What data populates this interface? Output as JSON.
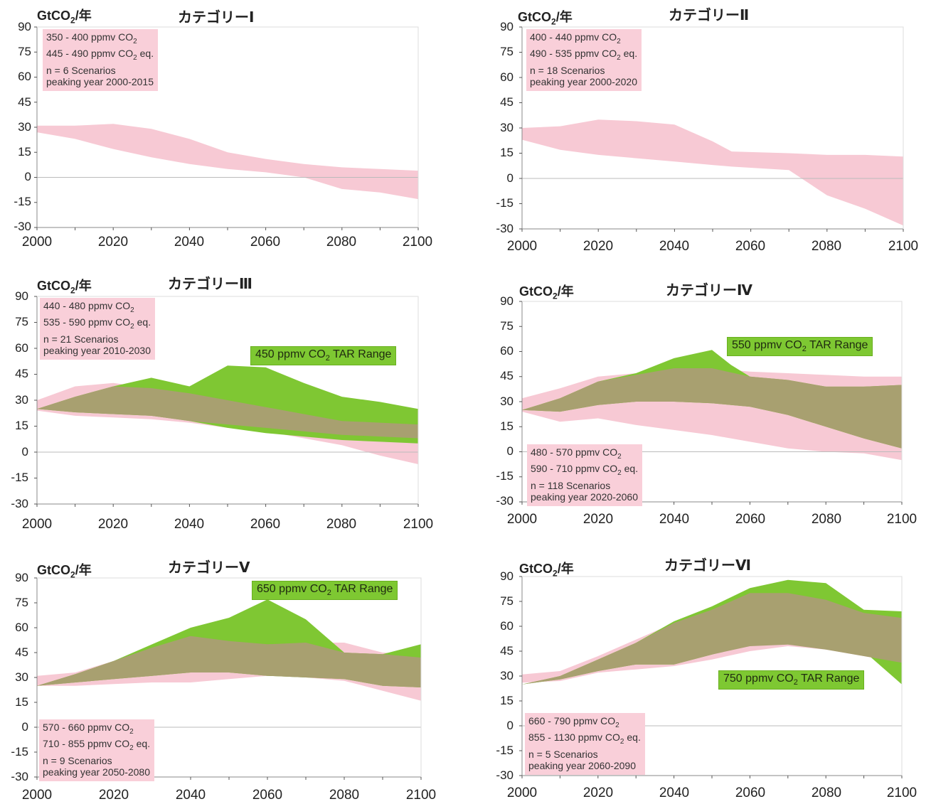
{
  "colors": {
    "scenario_band": "#f7c9d4",
    "tar_band": "#7fc733",
    "overlap_band": "#a8a070",
    "zero_line": "#bbbbbb",
    "frame": "#888888"
  },
  "chart_data": [
    {
      "type": "area",
      "title": "カテゴリーⅠ",
      "ylabel": "GtCO₂/年",
      "x_ticks": [
        "2000",
        "2020",
        "2040",
        "2060",
        "2080",
        "2100"
      ],
      "y_ticks": [
        "90",
        "75",
        "60",
        "45",
        "30",
        "15",
        "0",
        "-15",
        "-30"
      ],
      "xlim": [
        2000,
        2100
      ],
      "ylim": [
        -30,
        90
      ],
      "info": {
        "line1": "350 - 400 ppmv CO",
        "line2": "445 - 490 ppmv CO",
        "line2_suffix": " eq.",
        "line3": "n = 6 Scenarios",
        "line4": "peaking year 2000-2015",
        "sub": "2"
      },
      "info_position": "top-left",
      "series": [
        {
          "x": [
            2000,
            2010,
            2020,
            2030,
            2040,
            2050,
            2060,
            2070,
            2080,
            2090,
            2100
          ],
          "upper": [
            31,
            31,
            32,
            29,
            23,
            15,
            11,
            8,
            6,
            5,
            4
          ],
          "lower": [
            27,
            23,
            17,
            12,
            8,
            5,
            3,
            0,
            -7,
            -9,
            -13
          ]
        }
      ]
    },
    {
      "type": "area",
      "title": "カテゴリーⅡ",
      "ylabel": "GtCO₂/年",
      "x_ticks": [
        "2000",
        "2020",
        "2040",
        "2060",
        "2080",
        "2100"
      ],
      "y_ticks": [
        "90",
        "75",
        "60",
        "45",
        "30",
        "15",
        "0",
        "-15",
        "-30"
      ],
      "xlim": [
        2000,
        2100
      ],
      "ylim": [
        -30,
        90
      ],
      "info": {
        "line1": "400 - 440 ppmv CO",
        "line2": "490 - 535 ppmv CO",
        "line2_suffix": " eq.",
        "line3": "n = 18 Scenarios",
        "line4": "peaking year 2000-2020",
        "sub": "2"
      },
      "info_position": "top-left",
      "series": [
        {
          "x": [
            2000,
            2010,
            2020,
            2030,
            2040,
            2050,
            2055,
            2070,
            2080,
            2090,
            2100
          ],
          "upper": [
            30,
            31,
            35,
            34,
            32,
            22,
            16,
            15,
            14,
            14,
            13
          ],
          "lower": [
            23,
            17,
            14,
            12,
            10,
            8,
            7,
            5,
            -10,
            -18,
            -28
          ]
        }
      ]
    },
    {
      "type": "area",
      "title": "カテゴリーⅢ",
      "ylabel": "GtCO₂/年",
      "x_ticks": [
        "2000",
        "2020",
        "2040",
        "2060",
        "2080",
        "2100"
      ],
      "y_ticks": [
        "90",
        "75",
        "60",
        "45",
        "30",
        "15",
        "0",
        "-15",
        "-30"
      ],
      "xlim": [
        2000,
        2100
      ],
      "ylim": [
        -30,
        90
      ],
      "info": {
        "line1": "440 - 480 ppmv CO",
        "line2": "535 - 590 ppmv CO",
        "line2_suffix": " eq.",
        "line3": "n = 21 Scenarios",
        "line4": "peaking year 2010-2030",
        "sub": "2"
      },
      "info_position": "top-left",
      "tar_label": {
        "prefix": "450 ppmv CO",
        "sub": "2",
        "suffix": " TAR Range"
      },
      "tar_position": "upper-right",
      "series": [
        {
          "x": [
            2000,
            2010,
            2020,
            2030,
            2040,
            2050,
            2060,
            2070,
            2080,
            2090,
            2100
          ],
          "upper": [
            30,
            38,
            40,
            37,
            34,
            30,
            26,
            22,
            18,
            17,
            17
          ],
          "lower": [
            24,
            21,
            20,
            19,
            17,
            14,
            12,
            8,
            4,
            -2,
            -7
          ]
        },
        {
          "x": [
            2000,
            2010,
            2020,
            2030,
            2040,
            2050,
            2060,
            2070,
            2080,
            2090,
            2100
          ],
          "upper": [
            25,
            32,
            38,
            43,
            38,
            50,
            49,
            40,
            32,
            29,
            25
          ],
          "lower": [
            25,
            23,
            22,
            21,
            18,
            14,
            11,
            9,
            7,
            6,
            5
          ]
        },
        {
          "x": [
            2000,
            2010,
            2020,
            2030,
            2040,
            2050,
            2060,
            2070,
            2080,
            2090,
            2100
          ],
          "upper": [
            25,
            32,
            38,
            37,
            34,
            30,
            26,
            22,
            18,
            17,
            16
          ],
          "lower": [
            25,
            23,
            22,
            21,
            18,
            16,
            14,
            12,
            10,
            9,
            8
          ]
        }
      ]
    },
    {
      "type": "area",
      "title": "カテゴリーⅣ",
      "ylabel": "GtCO₂/年",
      "x_ticks": [
        "2000",
        "2020",
        "2040",
        "2060",
        "2080",
        "2100"
      ],
      "y_ticks": [
        "90",
        "75",
        "60",
        "45",
        "30",
        "15",
        "0",
        "-15",
        "-30"
      ],
      "xlim": [
        2000,
        2100
      ],
      "ylim": [
        -30,
        90
      ],
      "info": {
        "line1": "480 - 570 ppmv CO",
        "line2": "590 - 710 ppmv CO",
        "line2_suffix": " eq.",
        "line3": "n = 118 Scenarios",
        "line4": "peaking year 2020-2060",
        "sub": "2"
      },
      "info_position": "bottom-left",
      "tar_label": {
        "prefix": "550 ppmv CO",
        "sub": "2",
        "suffix": " TAR Range"
      },
      "tar_position": "upper-right",
      "series": [
        {
          "x": [
            2000,
            2010,
            2020,
            2030,
            2040,
            2050,
            2060,
            2070,
            2080,
            2090,
            2100
          ],
          "upper": [
            32,
            38,
            45,
            47,
            50,
            50,
            48,
            47,
            46,
            45,
            45
          ],
          "lower": [
            24,
            18,
            20,
            16,
            13,
            10,
            6,
            2,
            0,
            -1,
            -5
          ]
        },
        {
          "x": [
            2000,
            2010,
            2020,
            2030,
            2040,
            2050,
            2055,
            2060,
            2070,
            2080,
            2090,
            2100
          ],
          "upper": [
            25,
            32,
            42,
            47,
            56,
            61,
            52,
            45,
            43,
            39,
            39,
            40
          ],
          "lower": [
            25,
            24,
            28,
            30,
            30,
            29,
            28,
            27,
            22,
            15,
            8,
            2
          ]
        },
        {
          "x": [
            2000,
            2010,
            2020,
            2030,
            2040,
            2050,
            2060,
            2070,
            2080,
            2090,
            2100
          ],
          "upper": [
            25,
            32,
            42,
            46,
            50,
            50,
            45,
            43,
            39,
            39,
            40
          ],
          "lower": [
            25,
            24,
            28,
            30,
            30,
            29,
            27,
            22,
            15,
            8,
            2
          ]
        }
      ]
    },
    {
      "type": "area",
      "title": "カテゴリーⅤ",
      "ylabel": "GtCO₂/年",
      "x_ticks": [
        "2000",
        "2020",
        "2040",
        "2060",
        "2080",
        "2100"
      ],
      "y_ticks": [
        "90",
        "75",
        "60",
        "45",
        "30",
        "15",
        "0",
        "-15",
        "-30"
      ],
      "xlim": [
        2000,
        2100
      ],
      "ylim": [
        -30,
        90
      ],
      "info": {
        "line1": "570 - 660 ppmv CO",
        "line2": "710 - 855 ppmv CO",
        "line2_suffix": " eq.",
        "line3": "n = 9 Scenarios",
        "line4": "peaking year 2050-2080",
        "sub": "2"
      },
      "info_position": "bottom-left",
      "tar_label": {
        "prefix": "650 ppmv CO",
        "sub": "2",
        "suffix": " TAR Range"
      },
      "tar_position": "upper-right",
      "series": [
        {
          "x": [
            2000,
            2010,
            2020,
            2030,
            2040,
            2050,
            2060,
            2070,
            2080,
            2090,
            2100
          ],
          "upper": [
            31,
            33,
            40,
            48,
            55,
            52,
            50,
            51,
            51,
            45,
            44
          ],
          "lower": [
            25,
            25,
            26,
            27,
            27,
            29,
            31,
            30,
            28,
            22,
            16
          ]
        },
        {
          "x": [
            2000,
            2010,
            2020,
            2030,
            2040,
            2050,
            2060,
            2070,
            2080,
            2090,
            2100
          ],
          "upper": [
            25,
            32,
            40,
            50,
            60,
            66,
            77,
            65,
            45,
            44,
            50
          ],
          "lower": [
            25,
            27,
            29,
            31,
            33,
            33,
            31,
            30,
            29,
            25,
            24
          ]
        },
        {
          "x": [
            2000,
            2010,
            2020,
            2030,
            2040,
            2050,
            2060,
            2070,
            2080,
            2090,
            2100
          ],
          "upper": [
            25,
            32,
            40,
            48,
            55,
            52,
            50,
            51,
            45,
            44,
            42
          ],
          "lower": [
            25,
            27,
            29,
            31,
            33,
            33,
            31,
            30,
            29,
            25,
            24
          ]
        }
      ]
    },
    {
      "type": "area",
      "title": "カテゴリーⅥ",
      "ylabel": "GtCO₂/年",
      "x_ticks": [
        "2000",
        "2020",
        "2040",
        "2060",
        "2080",
        "2100"
      ],
      "y_ticks": [
        "90",
        "75",
        "60",
        "45",
        "30",
        "15",
        "0",
        "-15",
        "-30"
      ],
      "xlim": [
        2000,
        2100
      ],
      "ylim": [
        -30,
        90
      ],
      "info": {
        "line1": "660 - 790 ppmv CO",
        "line2": "855 - 1130 ppmv CO",
        "line2_suffix": " eq.",
        "line3": "n = 5 Scenarios",
        "line4": "peaking year 2060-2090",
        "sub": "2"
      },
      "info_position": "bottom-left",
      "tar_label": {
        "prefix": "750 ppmv CO",
        "sub": "2",
        "suffix": " TAR Range"
      },
      "tar_position": "lower-right",
      "series": [
        {
          "x": [
            2000,
            2010,
            2020,
            2030,
            2040,
            2050,
            2060,
            2070,
            2080,
            2090,
            2100
          ],
          "upper": [
            31,
            33,
            42,
            52,
            62,
            70,
            80,
            82,
            78,
            68,
            65
          ],
          "lower": [
            26,
            27,
            32,
            34,
            36,
            40,
            45,
            48,
            46,
            42,
            38
          ]
        },
        {
          "x": [
            2000,
            2010,
            2020,
            2030,
            2040,
            2050,
            2060,
            2070,
            2080,
            2090,
            2100
          ],
          "upper": [
            25,
            30,
            40,
            50,
            63,
            72,
            83,
            88,
            86,
            70,
            69
          ],
          "lower": [
            25,
            28,
            33,
            37,
            37,
            43,
            49,
            54,
            50,
            45,
            25
          ]
        },
        {
          "x": [
            2000,
            2010,
            2020,
            2030,
            2040,
            2050,
            2060,
            2070,
            2080,
            2090,
            2100
          ],
          "upper": [
            25,
            30,
            40,
            50,
            62,
            70,
            80,
            80,
            76,
            68,
            65
          ],
          "lower": [
            25,
            28,
            33,
            37,
            37,
            43,
            48,
            49,
            46,
            42,
            38
          ]
        }
      ]
    }
  ]
}
